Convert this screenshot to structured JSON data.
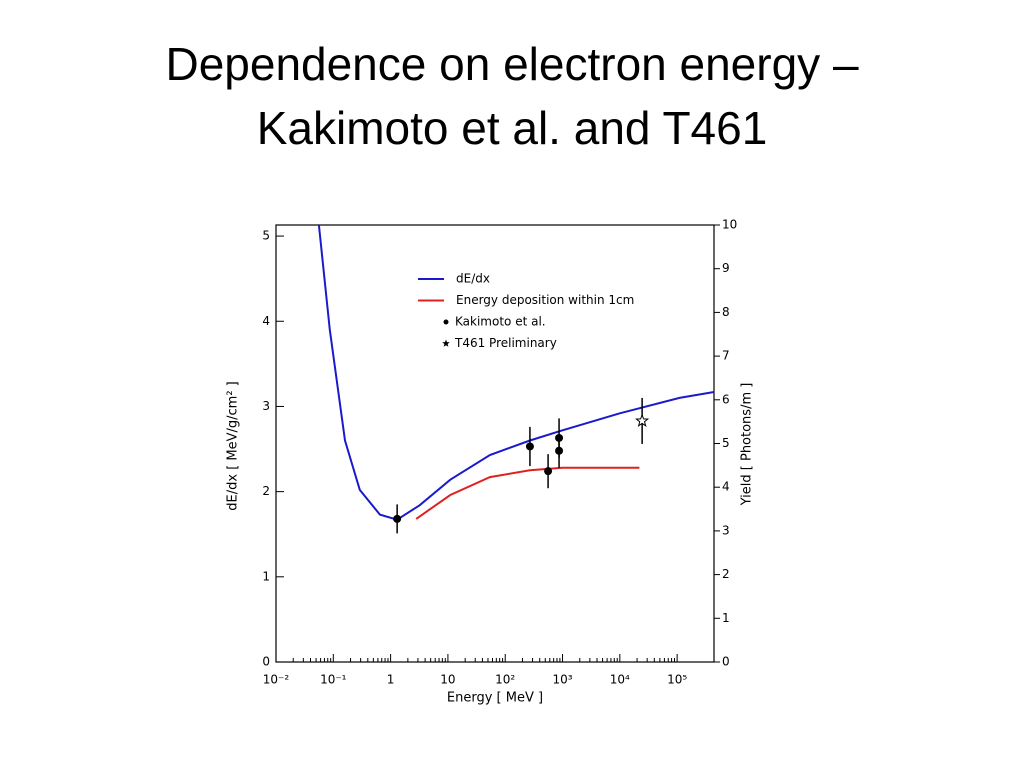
{
  "chart_data": {
    "type": "line",
    "title": "Dependence on electron energy – Kakimoto et al. and T461",
    "xlabel": "Energy [ MeV ]",
    "ylabel": "dE/dx [ MeV/g/cm² ]",
    "y2label": "Yield [ Photons/m ]",
    "xscale": "log",
    "xlim": [
      0.01,
      440000
    ],
    "ylim": [
      0,
      5.13
    ],
    "y2lim": [
      0,
      10
    ],
    "xticks": [
      {
        "value": 0.01,
        "label": "10⁻²"
      },
      {
        "value": 0.1,
        "label": "10⁻¹"
      },
      1,
      10,
      {
        "value": 100,
        "label": "10²"
      },
      {
        "value": 1000,
        "label": "10³"
      },
      {
        "value": 10000,
        "label": "10⁴"
      },
      {
        "value": 100000,
        "label": "10⁵"
      }
    ],
    "yticks": [
      0,
      1,
      2,
      3,
      4,
      5
    ],
    "y2ticks": [
      0,
      1,
      2,
      3,
      4,
      5,
      6,
      7,
      8,
      9,
      10
    ],
    "legend": "upper center",
    "series": [
      {
        "name": "dE/dx",
        "color": "#1a1acc",
        "kind": "line",
        "x": [
          0.056,
          0.087,
          0.16,
          0.29,
          0.65,
          1.3,
          3.2,
          11,
          54,
          270,
          1000,
          10000,
          110000,
          440000
        ],
        "values": [
          5.13,
          3.9,
          2.6,
          2.02,
          1.73,
          1.67,
          1.84,
          2.14,
          2.43,
          2.6,
          2.72,
          2.92,
          3.1,
          3.17
        ]
      },
      {
        "name": "Energy deposition within 1cm",
        "color": "#e02020",
        "kind": "line",
        "x": [
          2.8,
          11,
          54,
          270,
          1000,
          22000
        ],
        "values": [
          1.68,
          1.96,
          2.17,
          2.25,
          2.28,
          2.28
        ]
      },
      {
        "name": "Kakimoto et al.",
        "color": "#000000",
        "kind": "dot",
        "x": [
          1.3,
          270,
          560,
          870,
          870
        ],
        "values": [
          1.68,
          2.53,
          2.24,
          2.63,
          2.48
        ],
        "errors": [
          0.17,
          0.23,
          0.2,
          0.23,
          0.2
        ]
      },
      {
        "name": "T461 Preliminary",
        "color": "#000000",
        "kind": "star",
        "x": [
          24500
        ],
        "values": [
          2.83
        ],
        "errors": [
          0.27
        ]
      }
    ]
  }
}
